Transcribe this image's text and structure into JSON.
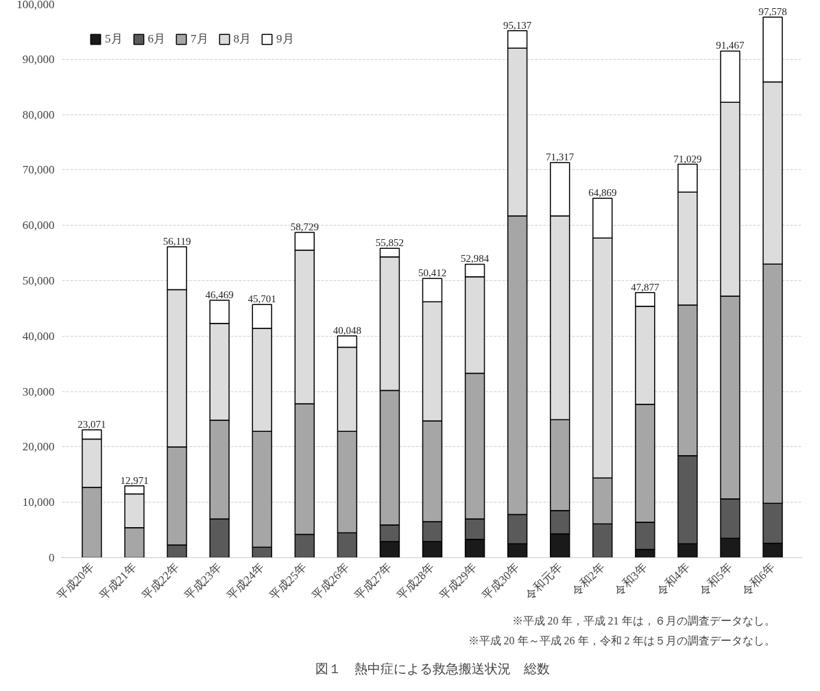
{
  "chart_data": {
    "type": "bar",
    "stacked": true,
    "title": "図１　熱中症による救急搬送状況　総数",
    "categories": [
      "平成20年",
      "平成21年",
      "平成22年",
      "平成23年",
      "平成24年",
      "平成25年",
      "平成26年",
      "平成27年",
      "平成28年",
      "平成29年",
      "平成30年",
      "令和元年",
      "令和2年",
      "令和3年",
      "令和4年",
      "令和5年",
      "令和6年"
    ],
    "series": [
      {
        "name": "5月",
        "color": "#1a1a1a",
        "values": [
          null,
          null,
          null,
          null,
          null,
          null,
          null,
          2900,
          2900,
          3300,
          2500,
          4300,
          null,
          1500,
          2500,
          3500,
          2600
        ]
      },
      {
        "name": "6月",
        "color": "#5a5a5a",
        "values": [
          null,
          null,
          2300,
          7000,
          1900,
          4200,
          4500,
          3000,
          3600,
          3700,
          5300,
          4200,
          6100,
          4900,
          15900,
          7100,
          7200
        ]
      },
      {
        "name": "7月",
        "color": "#a6a6a6",
        "values": [
          12700,
          5400,
          17700,
          17800,
          20900,
          23600,
          18300,
          24300,
          18200,
          26300,
          53900,
          16400,
          8300,
          21300,
          27200,
          36600,
          43200
        ]
      },
      {
        "name": "8月",
        "color": "#dcdcdc",
        "values": [
          8700,
          6100,
          28400,
          17500,
          18600,
          27700,
          15200,
          24100,
          21500,
          17400,
          30300,
          36800,
          43300,
          17700,
          20400,
          35000,
          32900
        ]
      },
      {
        "name": "9月",
        "color": "#ffffff",
        "values": [
          1671,
          1471,
          7719,
          4169,
          4301,
          3229,
          2048,
          1552,
          4212,
          2284,
          3137,
          9617,
          7169,
          2477,
          5029,
          9267,
          11678
        ]
      }
    ],
    "totals": [
      "23,071",
      "12,971",
      "56,119",
      "46,469",
      "45,701",
      "58,729",
      "40,048",
      "55,852",
      "50,412",
      "52,984",
      "95,137",
      "71,317",
      "64,869",
      "47,877",
      "71,029",
      "91,467",
      "97,578"
    ],
    "ylim": [
      0,
      100000
    ],
    "yticks": [
      {
        "value": 0,
        "label": "0"
      },
      {
        "value": 10000,
        "label": "10,000"
      },
      {
        "value": 20000,
        "label": "20,000"
      },
      {
        "value": 30000,
        "label": "30,000"
      },
      {
        "value": 40000,
        "label": "40,000"
      },
      {
        "value": 50000,
        "label": "50,000"
      },
      {
        "value": 60000,
        "label": "60,000"
      },
      {
        "value": 70000,
        "label": "70,000"
      },
      {
        "value": 80000,
        "label": "80,000"
      },
      {
        "value": 90000,
        "label": "90,000"
      },
      {
        "value": 100000,
        "label": "100,000"
      }
    ],
    "grid": "y",
    "legend": "top left",
    "annotations": [
      "※平成 20 年，平成 21 年は，６月の調査データなし。",
      "※平成 20 年～平成 26 年，令和 2 年は５月の調査データなし。"
    ]
  }
}
